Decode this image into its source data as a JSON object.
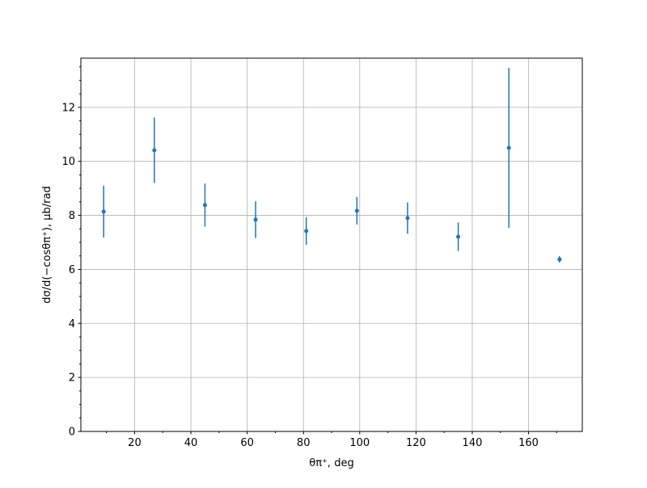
{
  "chart_data": {
    "type": "scatter",
    "title": "",
    "xlabel": "θπ⁺, deg",
    "ylabel": "dσ/d(−cosθπ⁺), μb/rad",
    "xlim": [
      0.9,
      179.1
    ],
    "ylim": [
      0,
      13.82
    ],
    "grid": true,
    "color": "#1f77b4",
    "x_ticks": [
      20,
      40,
      60,
      80,
      100,
      120,
      140,
      160
    ],
    "y_ticks": [
      0,
      2,
      4,
      6,
      8,
      10,
      12
    ],
    "series": [
      {
        "x": [
          9,
          27,
          45,
          63,
          81,
          99,
          117,
          135,
          153,
          171
        ],
        "y": [
          8.14,
          10.41,
          8.38,
          7.84,
          7.42,
          8.17,
          7.9,
          7.21,
          10.5,
          6.37
        ],
        "yerr": [
          0.96,
          1.21,
          0.8,
          0.68,
          0.51,
          0.51,
          0.58,
          0.53,
          2.96,
          0.12
        ]
      }
    ]
  }
}
